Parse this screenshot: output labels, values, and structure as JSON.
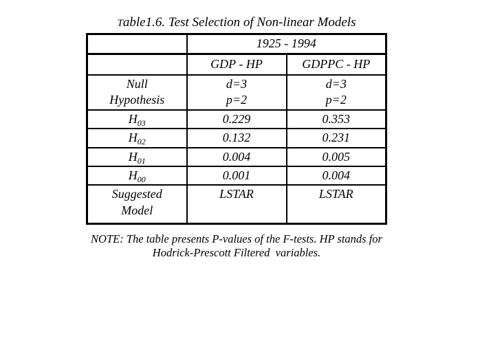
{
  "colors": {
    "background": "#ffffff",
    "text": "#000000",
    "border": "#000000"
  },
  "title": "Table1.6. Test Selection of Non-linear Models",
  "table": {
    "period_header": "1925 - 1994",
    "columns": {
      "gdp": "GDP - HP",
      "gdppc": "GDPPC - HP"
    },
    "null_hypothesis_row": {
      "label_line1": "Null",
      "label_line2": "Hypothesis",
      "gdp_line1": "d=3",
      "gdp_line2": "p=2",
      "gdppc_line1": "d=3",
      "gdppc_line2": "p=2"
    },
    "h_rows": [
      {
        "label_base": "H",
        "label_sub": "03",
        "gdp": "0.229",
        "gdppc": "0.353"
      },
      {
        "label_base": "H",
        "label_sub": "02",
        "gdp": "0.132",
        "gdppc": "0.231"
      },
      {
        "label_base": "H",
        "label_sub": "01",
        "gdp": "0.004",
        "gdppc": "0.005"
      },
      {
        "label_base": "H",
        "label_sub": "00",
        "gdp": "0.001",
        "gdppc": "0.004"
      }
    ],
    "suggested_row": {
      "label_line1": "Suggested",
      "label_line2": "Model",
      "gdp": "LSTAR",
      "gdppc": "LSTAR"
    }
  },
  "note": {
    "line1": "NOTE: The table presents P-values of the F-tests. HP stands for",
    "line2": "Hodrick-Prescott Filtered  variables."
  }
}
